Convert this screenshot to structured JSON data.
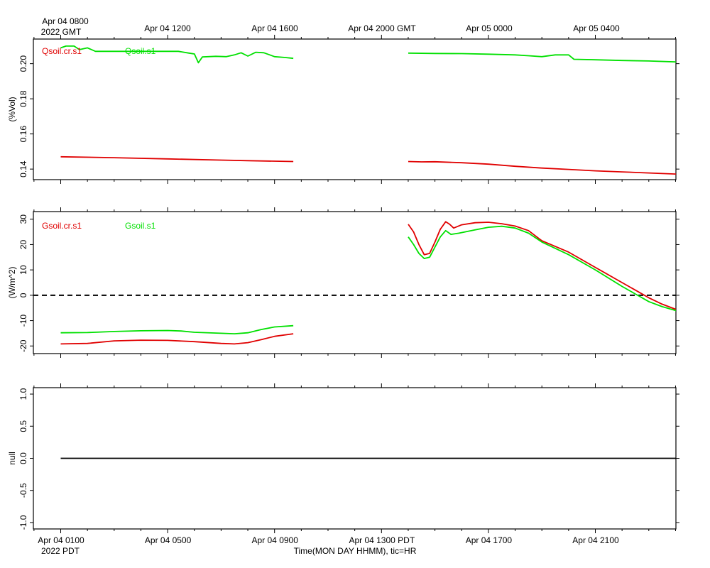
{
  "top_time_labels": [
    "Apr 04 0800",
    "Apr 04 1200",
    "Apr 04 1600",
    "Apr 04 2000 GMT",
    "Apr 05 0000",
    "Apr 05 0400"
  ],
  "top_year_label": "2022 GMT",
  "bottom_time_labels": [
    "Apr 04 0100",
    "Apr 04 0500",
    "Apr 04 0900",
    "Apr 04 1300 PDT",
    "Apr 04 1700",
    "Apr 04 2100"
  ],
  "bottom_year_label": "2022 PDT",
  "x_axis_title": "Time(MON DAY HHMM), tic=HR",
  "colors": {
    "red": "#e00000",
    "green": "#00e000",
    "black": "#000000"
  },
  "chart_data": [
    {
      "type": "line",
      "ylabel": "(%Vol)",
      "ylim": [
        0.134,
        0.214
      ],
      "yticks": [
        "0.14",
        "0.16",
        "0.18",
        "0.20"
      ],
      "yticks_values": [
        0.14,
        0.16,
        0.18,
        0.2
      ],
      "xlim_hours_pdt": [
        0,
        24
      ],
      "legend": [
        "Qsoil.cr.s1",
        "Qsoil.s1"
      ],
      "series": [
        {
          "name": "Qsoil.cr.s1",
          "color": "#e00000",
          "segments": [
            [
              [
                0.0,
                0.147
              ],
              [
                2.0,
                0.1465
              ],
              [
                4.0,
                0.1458
              ],
              [
                6.0,
                0.1451
              ],
              [
                7.0,
                0.1448
              ],
              [
                8.7,
                0.1443
              ]
            ],
            [
              [
                13.0,
                0.1443
              ],
              [
                13.5,
                0.1441
              ],
              [
                14.0,
                0.1442
              ],
              [
                15.0,
                0.1436
              ],
              [
                16.0,
                0.1428
              ],
              [
                17.0,
                0.1416
              ],
              [
                18.0,
                0.1406
              ],
              [
                19.0,
                0.1398
              ],
              [
                20.0,
                0.139
              ],
              [
                21.0,
                0.1384
              ],
              [
                22.0,
                0.1378
              ],
              [
                23.0,
                0.1372
              ],
              [
                24.0,
                0.1367
              ]
            ]
          ]
        },
        {
          "name": "Qsoil.s1",
          "color": "#00e000",
          "segments": [
            [
              [
                0.0,
                0.209
              ],
              [
                0.2,
                0.21
              ],
              [
                0.5,
                0.21
              ],
              [
                0.7,
                0.208
              ],
              [
                1.0,
                0.209
              ],
              [
                1.3,
                0.207
              ],
              [
                1.8,
                0.207
              ],
              [
                2.5,
                0.207
              ],
              [
                3.0,
                0.207
              ],
              [
                3.7,
                0.207
              ],
              [
                4.4,
                0.207
              ],
              [
                4.8,
                0.206
              ],
              [
                5.0,
                0.2055
              ],
              [
                5.15,
                0.2005
              ],
              [
                5.3,
                0.2038
              ],
              [
                5.8,
                0.2042
              ],
              [
                6.2,
                0.204
              ],
              [
                6.5,
                0.205
              ],
              [
                6.75,
                0.2062
              ],
              [
                7.0,
                0.2043
              ],
              [
                7.3,
                0.2065
              ],
              [
                7.6,
                0.2062
              ],
              [
                8.0,
                0.204
              ],
              [
                8.4,
                0.2035
              ],
              [
                8.7,
                0.203
              ]
            ],
            [
              [
                13.0,
                0.206
              ],
              [
                14.0,
                0.2058
              ],
              [
                15.0,
                0.2057
              ],
              [
                16.0,
                0.2054
              ],
              [
                17.0,
                0.205
              ],
              [
                17.5,
                0.2045
              ],
              [
                18.0,
                0.204
              ],
              [
                18.5,
                0.205
              ],
              [
                19.0,
                0.205
              ],
              [
                19.2,
                0.2025
              ],
              [
                20.0,
                0.2022
              ],
              [
                21.0,
                0.2018
              ],
              [
                22.0,
                0.2015
              ],
              [
                23.0,
                0.201
              ],
              [
                24.0,
                0.1995
              ]
            ]
          ]
        }
      ]
    },
    {
      "type": "line",
      "ylabel": "(W/m^2)",
      "ylim": [
        -23,
        33
      ],
      "yticks": [
        "-20",
        "-10",
        "0",
        "10",
        "20",
        "30"
      ],
      "yticks_values": [
        -20,
        -10,
        0,
        10,
        20,
        30
      ],
      "xlim_hours_pdt": [
        0,
        24
      ],
      "zero_line": "dashed",
      "legend": [
        "Gsoil.cr.s1",
        "Gsoil.s1"
      ],
      "series": [
        {
          "name": "Gsoil.cr.s1",
          "color": "#e00000",
          "segments": [
            [
              [
                0.0,
                -19.2
              ],
              [
                1.0,
                -19.0
              ],
              [
                2.0,
                -18.0
              ],
              [
                3.0,
                -17.7
              ],
              [
                4.0,
                -17.8
              ],
              [
                5.0,
                -18.3
              ],
              [
                6.0,
                -19.0
              ],
              [
                6.5,
                -19.2
              ],
              [
                7.0,
                -18.7
              ],
              [
                7.5,
                -17.5
              ],
              [
                8.0,
                -16.2
              ],
              [
                8.7,
                -15.2
              ]
            ],
            [
              [
                13.0,
                28.0
              ],
              [
                13.2,
                25.0
              ],
              [
                13.4,
                20.0
              ],
              [
                13.6,
                16.0
              ],
              [
                13.8,
                16.5
              ],
              [
                14.0,
                21.0
              ],
              [
                14.2,
                26.0
              ],
              [
                14.4,
                29.0
              ],
              [
                14.55,
                28.0
              ],
              [
                14.7,
                26.5
              ],
              [
                15.0,
                27.8
              ],
              [
                15.5,
                28.6
              ],
              [
                16.0,
                28.8
              ],
              [
                16.5,
                28.2
              ],
              [
                17.0,
                27.3
              ],
              [
                17.5,
                25.5
              ],
              [
                18.0,
                21.5
              ],
              [
                19.0,
                17.0
              ],
              [
                20.0,
                11.0
              ],
              [
                21.0,
                5.0
              ],
              [
                21.5,
                2.0
              ],
              [
                22.0,
                -1.0
              ],
              [
                22.5,
                -3.5
              ],
              [
                23.0,
                -5.5
              ],
              [
                23.5,
                -7.3
              ],
              [
                24.0,
                -9.2
              ],
              [
                24.3,
                -9.5
              ]
            ]
          ]
        },
        {
          "name": "Gsoil.s1",
          "color": "#00e000",
          "segments": [
            [
              [
                0.0,
                -14.8
              ],
              [
                1.0,
                -14.7
              ],
              [
                2.0,
                -14.3
              ],
              [
                3.0,
                -14.0
              ],
              [
                4.0,
                -13.9
              ],
              [
                4.5,
                -14.1
              ],
              [
                5.0,
                -14.6
              ],
              [
                6.0,
                -15.0
              ],
              [
                6.5,
                -15.2
              ],
              [
                7.0,
                -14.8
              ],
              [
                7.5,
                -13.5
              ],
              [
                8.0,
                -12.5
              ],
              [
                8.7,
                -12.0
              ]
            ],
            [
              [
                13.0,
                23.0
              ],
              [
                13.2,
                20.0
              ],
              [
                13.4,
                16.5
              ],
              [
                13.6,
                14.5
              ],
              [
                13.8,
                15.0
              ],
              [
                14.0,
                19.0
              ],
              [
                14.2,
                23.0
              ],
              [
                14.4,
                25.5
              ],
              [
                14.6,
                24.0
              ],
              [
                14.9,
                24.5
              ],
              [
                15.5,
                25.8
              ],
              [
                16.0,
                26.8
              ],
              [
                16.5,
                27.2
              ],
              [
                17.0,
                26.5
              ],
              [
                17.5,
                24.5
              ],
              [
                18.0,
                21.0
              ],
              [
                19.0,
                16.0
              ],
              [
                20.0,
                10.0
              ],
              [
                21.0,
                3.5
              ],
              [
                21.5,
                0.5
              ],
              [
                22.0,
                -2.5
              ],
              [
                22.5,
                -4.5
              ],
              [
                23.0,
                -6.0
              ],
              [
                23.5,
                -7.2
              ],
              [
                24.0,
                -7.7
              ]
            ]
          ]
        }
      ]
    },
    {
      "type": "line",
      "ylabel": "null",
      "ylim": [
        -1.1,
        1.1
      ],
      "yticks": [
        "-1.0",
        "-0.5",
        "0.0",
        "0.5",
        "1.0"
      ],
      "yticks_values": [
        -1.0,
        -0.5,
        0.0,
        0.5,
        1.0
      ],
      "xlim_hours_pdt": [
        0,
        24
      ],
      "series": [
        {
          "color": "#000000",
          "segments": [
            [
              [
                0.0,
                0.0
              ],
              [
                24.0,
                0.0
              ]
            ]
          ]
        }
      ]
    }
  ]
}
